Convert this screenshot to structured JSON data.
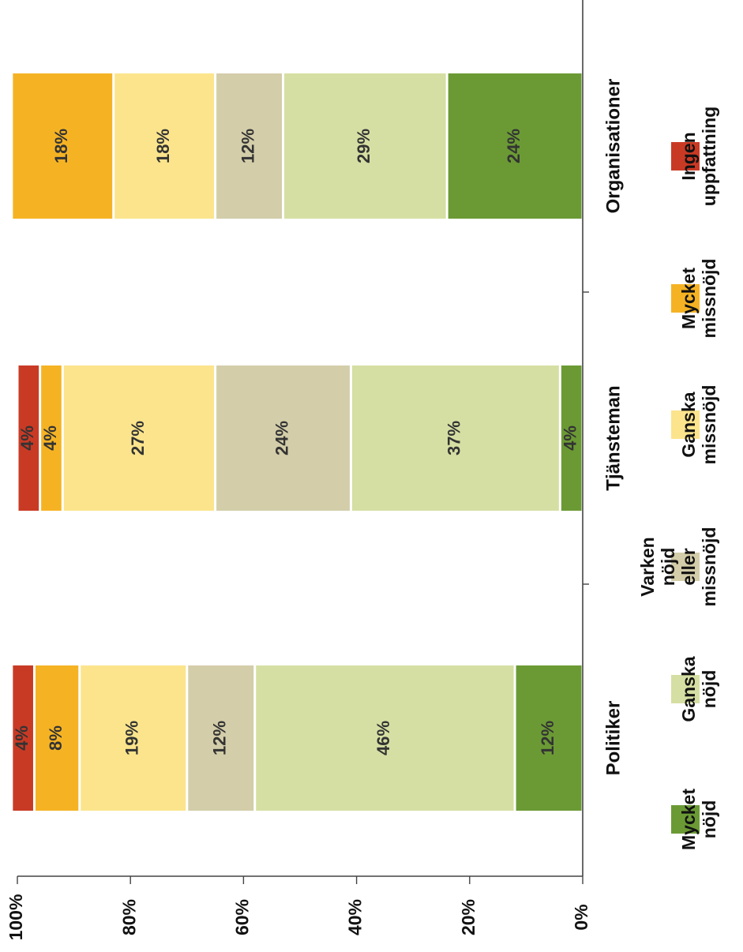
{
  "chart_data": {
    "type": "bar",
    "orientation": "stacked-100",
    "title": "",
    "xlabel": "",
    "ylabel": "",
    "ylim": [
      0,
      100
    ],
    "yticks": [
      "0%",
      "20%",
      "40%",
      "60%",
      "80%",
      "100%"
    ],
    "categories": [
      "Politiker",
      "Tjänsteman",
      "Organisationer"
    ],
    "series": [
      {
        "name": "Mycket nöjd",
        "legend_lines": [
          "Mycket",
          "nöjd"
        ],
        "color": "#6b9a35",
        "values": [
          12,
          4,
          24
        ],
        "labels": [
          "12%",
          "4%",
          "24%"
        ]
      },
      {
        "name": "Ganska nöjd",
        "legend_lines": [
          "Ganska",
          "nöjd"
        ],
        "color": "#d6dfa3",
        "values": [
          46,
          37,
          29
        ],
        "labels": [
          "46%",
          "37%",
          "29%"
        ]
      },
      {
        "name": "Varken nöjd eller missnöjd",
        "legend_lines": [
          "Varken",
          "nöjd",
          "eller",
          "missnöjd"
        ],
        "color": "#d3cda9",
        "values": [
          12,
          24,
          12
        ],
        "labels": [
          "12%",
          "24%",
          "12%"
        ]
      },
      {
        "name": "Ganska missnöjd",
        "legend_lines": [
          "Ganska",
          "missnöjd"
        ],
        "color": "#fbe48c",
        "values": [
          19,
          27,
          18
        ],
        "labels": [
          "19%",
          "27%",
          "18%"
        ]
      },
      {
        "name": "Mycket missnöjd",
        "legend_lines": [
          "Mycket",
          "missnöjd"
        ],
        "color": "#f5b324",
        "values": [
          8,
          4,
          18
        ],
        "labels": [
          "8%",
          "4%",
          "18%"
        ]
      },
      {
        "name": "Ingen uppfattning",
        "legend_lines": [
          "Ingen",
          "uppfattning"
        ],
        "color": "#c93a25",
        "values": [
          4,
          4,
          0
        ],
        "labels": [
          "4%",
          "4%",
          ""
        ]
      }
    ],
    "legend_position": "bottom",
    "grid": false
  }
}
